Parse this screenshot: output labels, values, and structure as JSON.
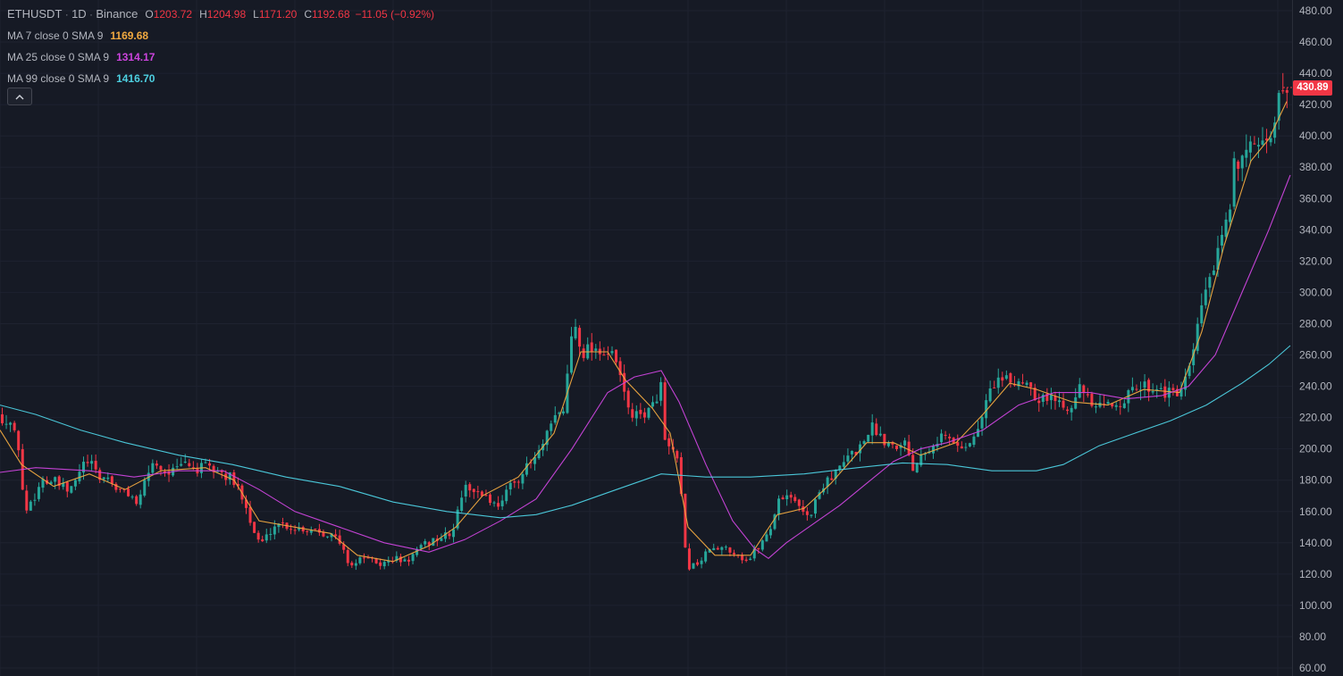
{
  "header": {
    "symbol": "ETHUSDT",
    "interval": "1D",
    "exchange": "Binance",
    "open_label": "O",
    "open_value": "1203.72",
    "high_label": "H",
    "high_value": "1204.98",
    "low_label": "L",
    "low_value": "1171.20",
    "close_label": "C",
    "close_value": "1192.68",
    "change": "−11.05 (−0.92%)",
    "ohlc_color": "#f23645"
  },
  "indicators": [
    {
      "label": "MA 7 close 0 SMA 9",
      "value": "1169.68",
      "color": "#f0a940"
    },
    {
      "label": "MA 25 close 0 SMA 9",
      "value": "1314.17",
      "color": "#cc44dd"
    },
    {
      "label": "MA 99 close 0 SMA 9",
      "value": "1416.70",
      "color": "#4dd0e1"
    }
  ],
  "controls": {
    "collapse_icon": "chevron-up-icon"
  },
  "last_price": {
    "value": "430.89",
    "numeric": 430.89,
    "color": "#f23645"
  },
  "colors": {
    "background": "#161a25",
    "up": "#26a69a",
    "down": "#f23645",
    "grid": "#1e2230",
    "axis_text": "#b2b5be"
  },
  "chart_data": {
    "type": "candlestick",
    "y_axis": {
      "ticks": [
        "480.00",
        "460.00",
        "440.00",
        "420.00",
        "400.00",
        "380.00",
        "360.00",
        "340.00",
        "320.00",
        "300.00",
        "280.00",
        "260.00",
        "240.00",
        "220.00",
        "200.00",
        "180.00",
        "160.00",
        "140.00",
        "120.00",
        "100.00",
        "80.00",
        "60.00"
      ],
      "ylim": [
        60,
        480
      ],
      "position": "right"
    },
    "grid": true,
    "close_path": [
      [
        0,
        222
      ],
      [
        4,
        215
      ],
      [
        8,
        220
      ],
      [
        14,
        210
      ],
      [
        20,
        200
      ],
      [
        24,
        172
      ],
      [
        28,
        160
      ],
      [
        34,
        168
      ],
      [
        40,
        172
      ],
      [
        46,
        182
      ],
      [
        52,
        178
      ],
      [
        58,
        180
      ],
      [
        64,
        177
      ],
      [
        70,
        175
      ],
      [
        76,
        172
      ],
      [
        82,
        178
      ],
      [
        88,
        186
      ],
      [
        94,
        192
      ],
      [
        100,
        190
      ],
      [
        106,
        185
      ],
      [
        112,
        180
      ],
      [
        118,
        183
      ],
      [
        124,
        178
      ],
      [
        130,
        174
      ],
      [
        136,
        172
      ],
      [
        142,
        172
      ],
      [
        148,
        168
      ],
      [
        154,
        164
      ],
      [
        160,
        178
      ],
      [
        166,
        188
      ],
      [
        172,
        192
      ],
      [
        178,
        188
      ],
      [
        184,
        185
      ],
      [
        190,
        186
      ],
      [
        196,
        186
      ],
      [
        202,
        190
      ],
      [
        208,
        191
      ],
      [
        214,
        188
      ],
      [
        220,
        186
      ],
      [
        226,
        189
      ],
      [
        232,
        188
      ],
      [
        238,
        186
      ],
      [
        244,
        186
      ],
      [
        250,
        182
      ],
      [
        256,
        182
      ],
      [
        262,
        176
      ],
      [
        268,
        172
      ],
      [
        274,
        165
      ],
      [
        280,
        150
      ],
      [
        286,
        143
      ],
      [
        292,
        140
      ],
      [
        298,
        145
      ],
      [
        304,
        150
      ],
      [
        310,
        153
      ],
      [
        316,
        152
      ],
      [
        322,
        150
      ],
      [
        328,
        149
      ],
      [
        334,
        150
      ],
      [
        340,
        148
      ],
      [
        346,
        149
      ],
      [
        352,
        149
      ],
      [
        358,
        147
      ],
      [
        364,
        146
      ],
      [
        370,
        145
      ],
      [
        376,
        142
      ],
      [
        382,
        136
      ],
      [
        388,
        128
      ],
      [
        394,
        126
      ],
      [
        400,
        128
      ],
      [
        406,
        132
      ],
      [
        412,
        128
      ],
      [
        418,
        128
      ],
      [
        424,
        126
      ],
      [
        430,
        127
      ],
      [
        436,
        129
      ],
      [
        442,
        130
      ],
      [
        448,
        128
      ],
      [
        454,
        128
      ],
      [
        460,
        132
      ],
      [
        466,
        135
      ],
      [
        472,
        138
      ],
      [
        478,
        140
      ],
      [
        484,
        142
      ],
      [
        490,
        143
      ],
      [
        496,
        144
      ],
      [
        502,
        146
      ],
      [
        508,
        150
      ],
      [
        512,
        165
      ],
      [
        516,
        172
      ],
      [
        522,
        176
      ],
      [
        528,
        175
      ],
      [
        534,
        170
      ],
      [
        540,
        172
      ],
      [
        546,
        168
      ],
      [
        552,
        164
      ],
      [
        558,
        166
      ],
      [
        564,
        172
      ],
      [
        570,
        176
      ],
      [
        576,
        180
      ],
      [
        582,
        184
      ],
      [
        588,
        188
      ],
      [
        594,
        192
      ],
      [
        600,
        196
      ],
      [
        606,
        202
      ],
      [
        612,
        210
      ],
      [
        618,
        218
      ],
      [
        624,
        222
      ],
      [
        630,
        226
      ],
      [
        634,
        250
      ],
      [
        638,
        272
      ],
      [
        642,
        280
      ],
      [
        646,
        272
      ],
      [
        650,
        262
      ],
      [
        654,
        262
      ],
      [
        658,
        266
      ],
      [
        662,
        265
      ],
      [
        668,
        264
      ],
      [
        674,
        262
      ],
      [
        680,
        260
      ],
      [
        686,
        258
      ],
      [
        692,
        248
      ],
      [
        698,
        232
      ],
      [
        704,
        224
      ],
      [
        710,
        220
      ],
      [
        716,
        222
      ],
      [
        722,
        224
      ],
      [
        728,
        225
      ],
      [
        734,
        235
      ],
      [
        738,
        242
      ],
      [
        742,
        205
      ],
      [
        746,
        200
      ],
      [
        752,
        198
      ],
      [
        758,
        188
      ],
      [
        762,
        162
      ],
      [
        766,
        130
      ],
      [
        770,
        125
      ],
      [
        776,
        126
      ],
      [
        782,
        128
      ],
      [
        788,
        132
      ],
      [
        794,
        138
      ],
      [
        800,
        134
      ],
      [
        806,
        136
      ],
      [
        812,
        138
      ],
      [
        818,
        134
      ],
      [
        824,
        133
      ],
      [
        830,
        130
      ],
      [
        836,
        128
      ],
      [
        842,
        134
      ],
      [
        848,
        138
      ],
      [
        854,
        143
      ],
      [
        860,
        148
      ],
      [
        866,
        160
      ],
      [
        870,
        168
      ],
      [
        876,
        170
      ],
      [
        882,
        172
      ],
      [
        888,
        165
      ],
      [
        894,
        162
      ],
      [
        900,
        160
      ],
      [
        906,
        158
      ],
      [
        912,
        168
      ],
      [
        918,
        175
      ],
      [
        924,
        182
      ],
      [
        930,
        182
      ],
      [
        936,
        186
      ],
      [
        942,
        190
      ],
      [
        948,
        195
      ],
      [
        954,
        198
      ],
      [
        960,
        200
      ],
      [
        966,
        206
      ],
      [
        970,
        212
      ],
      [
        976,
        214
      ],
      [
        982,
        210
      ],
      [
        988,
        206
      ],
      [
        994,
        204
      ],
      [
        1000,
        202
      ],
      [
        1006,
        205
      ],
      [
        1012,
        204
      ],
      [
        1018,
        192
      ],
      [
        1022,
        186
      ],
      [
        1028,
        198
      ],
      [
        1034,
        200
      ],
      [
        1040,
        202
      ],
      [
        1046,
        206
      ],
      [
        1052,
        208
      ],
      [
        1058,
        208
      ],
      [
        1064,
        204
      ],
      [
        1070,
        202
      ],
      [
        1076,
        202
      ],
      [
        1082,
        204
      ],
      [
        1088,
        206
      ],
      [
        1094,
        214
      ],
      [
        1100,
        226
      ],
      [
        1106,
        236
      ],
      [
        1112,
        244
      ],
      [
        1118,
        244
      ],
      [
        1124,
        243
      ],
      [
        1130,
        243
      ],
      [
        1136,
        242
      ],
      [
        1142,
        244
      ],
      [
        1148,
        244
      ],
      [
        1154,
        238
      ],
      [
        1160,
        232
      ],
      [
        1166,
        234
      ],
      [
        1172,
        232
      ],
      [
        1178,
        232
      ],
      [
        1184,
        230
      ],
      [
        1190,
        228
      ],
      [
        1196,
        228
      ],
      [
        1202,
        236
      ],
      [
        1208,
        240
      ],
      [
        1214,
        232
      ],
      [
        1220,
        228
      ],
      [
        1226,
        226
      ],
      [
        1232,
        226
      ],
      [
        1238,
        228
      ],
      [
        1244,
        228
      ],
      [
        1250,
        230
      ],
      [
        1256,
        232
      ],
      [
        1262,
        234
      ],
      [
        1268,
        238
      ],
      [
        1274,
        240
      ],
      [
        1280,
        240
      ],
      [
        1286,
        240
      ],
      [
        1292,
        240
      ],
      [
        1298,
        238
      ],
      [
        1304,
        236
      ],
      [
        1310,
        234
      ],
      [
        1316,
        236
      ],
      [
        1322,
        238
      ],
      [
        1328,
        246
      ],
      [
        1334,
        262
      ],
      [
        1340,
        280
      ],
      [
        1346,
        298
      ],
      [
        1352,
        310
      ],
      [
        1358,
        316
      ],
      [
        1364,
        328
      ],
      [
        1370,
        342
      ],
      [
        1376,
        356
      ],
      [
        1380,
        388
      ],
      [
        1386,
        384
      ],
      [
        1392,
        396
      ],
      [
        1398,
        392
      ],
      [
        1404,
        388
      ],
      [
        1410,
        390
      ],
      [
        1416,
        392
      ],
      [
        1422,
        404
      ],
      [
        1428,
        420
      ],
      [
        1434,
        432
      ],
      [
        1440,
        431
      ]
    ],
    "series": [
      {
        "name": "MA 7 close 0 SMA 9",
        "type": "line",
        "color": "#f0a940",
        "path": [
          [
            0,
            212
          ],
          [
            24,
            190
          ],
          [
            60,
            176
          ],
          [
            100,
            184
          ],
          [
            140,
            174
          ],
          [
            180,
            186
          ],
          [
            230,
            188
          ],
          [
            262,
            180
          ],
          [
            290,
            154
          ],
          [
            330,
            150
          ],
          [
            370,
            146
          ],
          [
            400,
            132
          ],
          [
            440,
            128
          ],
          [
            480,
            138
          ],
          [
            510,
            150
          ],
          [
            540,
            170
          ],
          [
            580,
            182
          ],
          [
            620,
            210
          ],
          [
            650,
            262
          ],
          [
            680,
            262
          ],
          [
            700,
            244
          ],
          [
            730,
            226
          ],
          [
            750,
            210
          ],
          [
            770,
            150
          ],
          [
            800,
            132
          ],
          [
            840,
            132
          ],
          [
            870,
            158
          ],
          [
            900,
            162
          ],
          [
            930,
            178
          ],
          [
            970,
            204
          ],
          [
            1000,
            204
          ],
          [
            1030,
            196
          ],
          [
            1070,
            204
          ],
          [
            1100,
            222
          ],
          [
            1130,
            242
          ],
          [
            1160,
            238
          ],
          [
            1200,
            230
          ],
          [
            1240,
            228
          ],
          [
            1280,
            238
          ],
          [
            1320,
            236
          ],
          [
            1345,
            275
          ],
          [
            1370,
            330
          ],
          [
            1400,
            384
          ],
          [
            1420,
            398
          ],
          [
            1440,
            422
          ]
        ]
      },
      {
        "name": "MA 25 close 0 SMA 9",
        "type": "line",
        "color": "#cc44dd",
        "path": [
          [
            0,
            185
          ],
          [
            40,
            188
          ],
          [
            100,
            186
          ],
          [
            150,
            182
          ],
          [
            200,
            186
          ],
          [
            250,
            186
          ],
          [
            290,
            174
          ],
          [
            330,
            160
          ],
          [
            380,
            150
          ],
          [
            430,
            140
          ],
          [
            480,
            134
          ],
          [
            520,
            142
          ],
          [
            560,
            154
          ],
          [
            600,
            168
          ],
          [
            640,
            200
          ],
          [
            680,
            236
          ],
          [
            710,
            246
          ],
          [
            740,
            250
          ],
          [
            760,
            230
          ],
          [
            790,
            190
          ],
          [
            820,
            154
          ],
          [
            845,
            136
          ],
          [
            860,
            130
          ],
          [
            880,
            140
          ],
          [
            910,
            152
          ],
          [
            940,
            164
          ],
          [
            970,
            178
          ],
          [
            1000,
            192
          ],
          [
            1030,
            200
          ],
          [
            1060,
            204
          ],
          [
            1100,
            212
          ],
          [
            1140,
            228
          ],
          [
            1180,
            236
          ],
          [
            1220,
            236
          ],
          [
            1260,
            232
          ],
          [
            1300,
            234
          ],
          [
            1330,
            240
          ],
          [
            1360,
            260
          ],
          [
            1390,
            300
          ],
          [
            1420,
            340
          ],
          [
            1444,
            375
          ]
        ]
      },
      {
        "name": "MA 99 close 0 SMA 9",
        "type": "line",
        "color": "#4dd0e1",
        "path": [
          [
            0,
            228
          ],
          [
            40,
            222
          ],
          [
            90,
            212
          ],
          [
            140,
            204
          ],
          [
            200,
            196
          ],
          [
            260,
            190
          ],
          [
            320,
            182
          ],
          [
            380,
            176
          ],
          [
            440,
            166
          ],
          [
            500,
            160
          ],
          [
            560,
            156
          ],
          [
            600,
            158
          ],
          [
            640,
            164
          ],
          [
            690,
            174
          ],
          [
            740,
            184
          ],
          [
            790,
            182
          ],
          [
            840,
            182
          ],
          [
            900,
            184
          ],
          [
            960,
            188
          ],
          [
            1010,
            191
          ],
          [
            1060,
            190
          ],
          [
            1110,
            186
          ],
          [
            1160,
            186
          ],
          [
            1190,
            190
          ],
          [
            1230,
            202
          ],
          [
            1270,
            210
          ],
          [
            1310,
            218
          ],
          [
            1350,
            228
          ],
          [
            1390,
            242
          ],
          [
            1420,
            254
          ],
          [
            1444,
            266
          ]
        ]
      }
    ],
    "legend": "top-left"
  }
}
